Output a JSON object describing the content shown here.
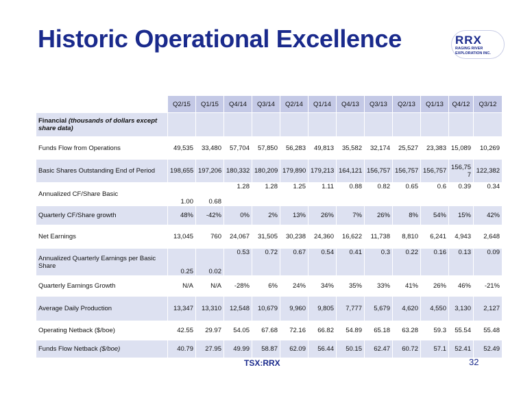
{
  "title": "Historic Operational Excellence",
  "logo": {
    "main": "RRX",
    "line1": "RAGING RIVER",
    "line2": "EXPLORATION INC."
  },
  "table": {
    "columns": [
      "Q2/15",
      "Q1/15",
      "Q4/14",
      "Q3/14",
      "Q2/14",
      "Q1/14",
      "Q4/13",
      "Q3/13",
      "Q2/13",
      "Q1/13",
      "Q4/12",
      "Q3/12"
    ],
    "section_label_bold": "Financial ",
    "section_label_italic": "(thousands of dollars except share data)",
    "rows": [
      {
        "label": "Funds Flow from Operations",
        "values": [
          "49,535",
          "33,480",
          "57,704",
          "57,850",
          "56,283",
          "49,813",
          "35,582",
          "32,174",
          "25,527",
          "23,383",
          "15,089",
          "10,269"
        ]
      },
      {
        "label": "Basic Shares Outstanding End of Period",
        "values": [
          "198,655",
          "197,206",
          "180,332",
          "180,209",
          "179,890",
          "179,213",
          "164,121",
          "156,757",
          "156,757",
          "156,757",
          "156,75 7",
          "122,382"
        ]
      },
      {
        "label": "Annualized CF/Share Basic",
        "values": [
          "1.00",
          "0.68",
          "1.28",
          "1.28",
          "1.25",
          "1.11",
          "0.88",
          "0.82",
          "0.65",
          "0.6",
          "0.39",
          "0.34"
        ]
      },
      {
        "label": "Quarterly CF/Share growth",
        "values": [
          "48%",
          "-42%",
          "0%",
          "2%",
          "13%",
          "26%",
          "7%",
          "26%",
          "8%",
          "54%",
          "15%",
          "42%"
        ]
      },
      {
        "label": "Net Earnings",
        "values": [
          "13,045",
          "760",
          "24,067",
          "31,505",
          "30,238",
          "24,360",
          "16,622",
          "11,738",
          "8,810",
          "6,241",
          "4,943",
          "2,648"
        ]
      },
      {
        "label": "Annualized Quarterly Earnings per Basic Share",
        "values": [
          "0.25",
          "0.02",
          "0.53",
          "0.72",
          "0.67",
          "0.54",
          "0.41",
          "0.3",
          "0.22",
          "0.16",
          "0.13",
          "0.09"
        ]
      },
      {
        "label": "Quarterly Earnings Growth",
        "values": [
          "N/A",
          "N/A",
          "-28%",
          "6%",
          "24%",
          "34%",
          "35%",
          "33%",
          "41%",
          "26%",
          "46%",
          "-21%"
        ]
      },
      {
        "label": "Average Daily Production",
        "values": [
          "13,347",
          "13,310",
          "12,548",
          "10,679",
          "9,960",
          "9,805",
          "7,777",
          "5,679",
          "4,620",
          "4,550",
          "3,130",
          "2,127"
        ]
      },
      {
        "label": "Operating Netback ($/boe)",
        "values": [
          "42.55",
          "29.97",
          "54.05",
          "67.68",
          "72.16",
          "66.82",
          "54.89",
          "65.18",
          "63.28",
          "59.3",
          "55.54",
          "55.48"
        ]
      },
      {
        "label_plain": "Funds Flow Netback ",
        "label_italic": "($/boe)",
        "values": [
          "40.79",
          "27.95",
          "49.99",
          "58.87",
          "62.09",
          "56.44",
          "50.15",
          "62.47",
          "60.72",
          "57.1",
          "52.41",
          "52.49"
        ]
      }
    ]
  },
  "footer": {
    "ticker": "TSX:RRX",
    "page": "32"
  }
}
